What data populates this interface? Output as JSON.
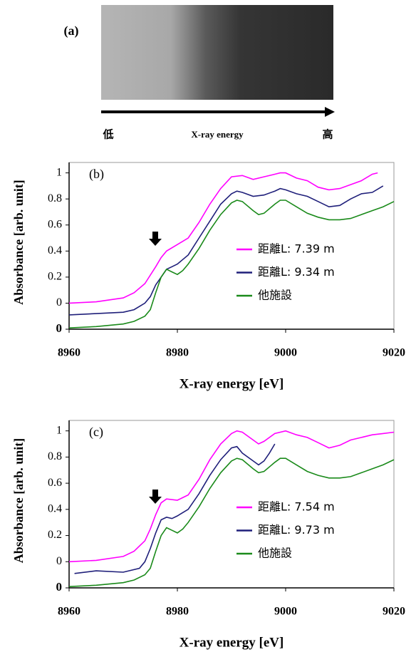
{
  "panel_a": {
    "label": "(a)",
    "low": "低",
    "axis_label": "X-ray energy",
    "high": "高"
  },
  "chart_data": [
    {
      "type": "line",
      "panel_label": "(b)",
      "xlabel": "X-ray energy [eV]",
      "ylabel": "Absorbance [arb. unit]",
      "xlim": [
        8960,
        9020
      ],
      "ylim": [
        -0.2,
        1.08
      ],
      "xticks": [
        8960,
        8980,
        9000,
        9020
      ],
      "yticks": [
        {
          "value": -0.2,
          "label": "0"
        },
        0,
        0.2,
        0.4,
        0.6,
        0.8,
        1
      ],
      "legend": "right",
      "series": [
        {
          "name": "距離L: 7.39 m",
          "color": "#ff00ff",
          "x": [
            8960,
            8965,
            8970,
            8972,
            8974,
            8976,
            8977,
            8978,
            8980,
            8982,
            8984,
            8986,
            8988,
            8990,
            8992,
            8994,
            8996,
            8998,
            8999,
            9000,
            9002,
            9004,
            9006,
            9008,
            9010,
            9012,
            9014,
            9016,
            9017
          ],
          "values": [
            0.0,
            0.01,
            0.04,
            0.08,
            0.15,
            0.28,
            0.35,
            0.4,
            0.45,
            0.5,
            0.62,
            0.76,
            0.88,
            0.97,
            0.98,
            0.95,
            0.97,
            0.99,
            1.0,
            1.0,
            0.96,
            0.94,
            0.89,
            0.87,
            0.88,
            0.91,
            0.94,
            0.99,
            1.0
          ]
        },
        {
          "name": "距離L: 9.34 m",
          "color": "#1f1f7a",
          "x": [
            8960,
            8965,
            8970,
            8972,
            8974,
            8975,
            8976,
            8977,
            8978,
            8979,
            8980,
            8982,
            8984,
            8986,
            8988,
            8990,
            8991,
            8992,
            8994,
            8996,
            8998,
            8999,
            9000,
            9002,
            9004,
            9006,
            9008,
            9010,
            9012,
            9014,
            9016,
            9018
          ],
          "values": [
            -0.09,
            -0.08,
            -0.07,
            -0.05,
            0.0,
            0.05,
            0.14,
            0.2,
            0.26,
            0.28,
            0.3,
            0.37,
            0.5,
            0.63,
            0.76,
            0.84,
            0.86,
            0.85,
            0.82,
            0.83,
            0.86,
            0.88,
            0.87,
            0.84,
            0.82,
            0.78,
            0.74,
            0.75,
            0.8,
            0.84,
            0.85,
            0.9
          ]
        },
        {
          "name": "他施設",
          "color": "#1a8a1a",
          "x": [
            8960,
            8965,
            8970,
            8972,
            8974,
            8975,
            8976,
            8977,
            8978,
            8979,
            8980,
            8981,
            8982,
            8984,
            8986,
            8988,
            8990,
            8991,
            8992,
            8994,
            8995,
            8996,
            8998,
            8999,
            9000,
            9002,
            9004,
            9006,
            9008,
            9010,
            9012,
            9014,
            9016,
            9018,
            9020
          ],
          "values": [
            -0.19,
            -0.18,
            -0.16,
            -0.14,
            -0.1,
            -0.05,
            0.08,
            0.2,
            0.26,
            0.24,
            0.22,
            0.25,
            0.3,
            0.42,
            0.56,
            0.68,
            0.77,
            0.79,
            0.78,
            0.71,
            0.68,
            0.69,
            0.76,
            0.79,
            0.79,
            0.74,
            0.69,
            0.66,
            0.64,
            0.64,
            0.65,
            0.68,
            0.71,
            0.74,
            0.78
          ]
        }
      ]
    },
    {
      "type": "line",
      "panel_label": "(c)",
      "xlabel": "X-ray energy [eV]",
      "ylabel": "Absorbance [arb. unit]",
      "xlim": [
        8960,
        9020
      ],
      "ylim": [
        -0.2,
        1.08
      ],
      "xticks": [
        8960,
        8980,
        9000,
        9020
      ],
      "yticks": [
        {
          "value": -0.2,
          "label": "0"
        },
        0,
        0.2,
        0.4,
        0.6,
        0.8,
        1
      ],
      "legend": "right",
      "series": [
        {
          "name": "距離L: 7.54 m",
          "color": "#ff00ff",
          "x": [
            8960,
            8965,
            8970,
            8972,
            8974,
            8975,
            8976,
            8977,
            8978,
            8980,
            8982,
            8984,
            8986,
            8988,
            8990,
            8991,
            8992,
            8994,
            8995,
            8996,
            8998,
            9000,
            9002,
            9004,
            9006,
            9008,
            9010,
            9012,
            9014,
            9016,
            9018,
            9020
          ],
          "values": [
            0.0,
            0.01,
            0.04,
            0.08,
            0.16,
            0.25,
            0.36,
            0.45,
            0.48,
            0.47,
            0.51,
            0.63,
            0.78,
            0.9,
            0.98,
            1.0,
            0.99,
            0.93,
            0.9,
            0.92,
            0.98,
            1.0,
            0.97,
            0.95,
            0.91,
            0.87,
            0.89,
            0.93,
            0.95,
            0.97,
            0.98,
            0.99
          ]
        },
        {
          "name": "距離L: 9.73 m",
          "color": "#1f1f7a",
          "x": [
            8961,
            8965,
            8970,
            8973,
            8974,
            8975,
            8976,
            8977,
            8978,
            8979,
            8980,
            8982,
            8984,
            8986,
            8988,
            8990,
            8991,
            8992,
            8994,
            8995,
            8996,
            8997,
            8998
          ],
          "values": [
            -0.09,
            -0.07,
            -0.08,
            -0.05,
            0.0,
            0.1,
            0.22,
            0.32,
            0.34,
            0.33,
            0.35,
            0.4,
            0.52,
            0.66,
            0.78,
            0.87,
            0.88,
            0.83,
            0.77,
            0.74,
            0.77,
            0.83,
            0.9
          ]
        },
        {
          "name": "他施設",
          "color": "#1a8a1a",
          "x": [
            8960,
            8965,
            8970,
            8972,
            8974,
            8975,
            8976,
            8977,
            8978,
            8979,
            8980,
            8981,
            8982,
            8984,
            8986,
            8988,
            8990,
            8991,
            8992,
            8994,
            8995,
            8996,
            8998,
            8999,
            9000,
            9002,
            9004,
            9006,
            9008,
            9010,
            9012,
            9014,
            9016,
            9018,
            9020
          ],
          "values": [
            -0.19,
            -0.18,
            -0.16,
            -0.14,
            -0.1,
            -0.05,
            0.08,
            0.2,
            0.26,
            0.24,
            0.22,
            0.25,
            0.3,
            0.42,
            0.56,
            0.68,
            0.77,
            0.79,
            0.78,
            0.71,
            0.68,
            0.69,
            0.76,
            0.79,
            0.79,
            0.74,
            0.69,
            0.66,
            0.64,
            0.64,
            0.65,
            0.68,
            0.71,
            0.74,
            0.78
          ]
        }
      ]
    }
  ]
}
